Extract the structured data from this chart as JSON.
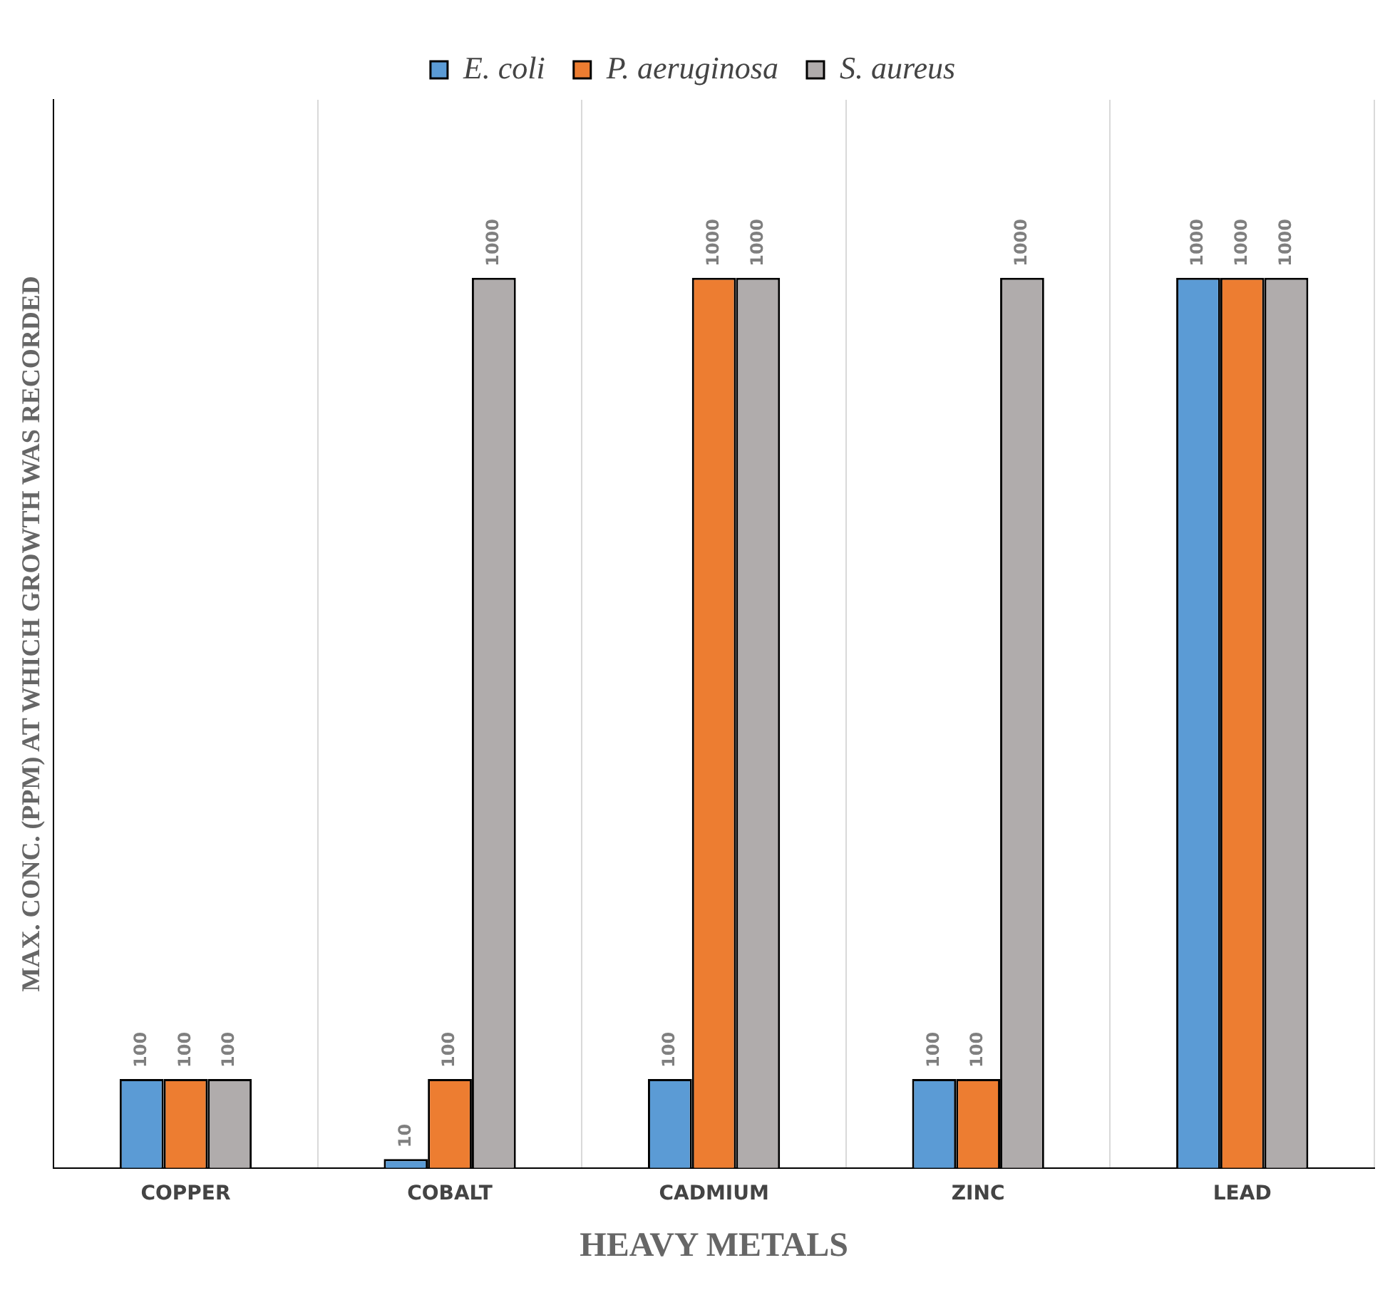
{
  "chart_data": {
    "type": "bar",
    "xlabel": "HEAVY METALS",
    "ylabel": "MAX. CONC. (PPM) AT WHICH GROWTH WAS RECORDED",
    "categories": [
      "COPPER",
      "COBALT",
      "CADMIUM",
      "ZINC",
      "LEAD"
    ],
    "series": [
      {
        "name": "E. coli",
        "color": "#5b9bd5",
        "values": [
          100,
          10,
          100,
          100,
          1000
        ]
      },
      {
        "name": "P. aeruginosa",
        "color": "#ed7d31",
        "values": [
          100,
          100,
          1000,
          100,
          1000
        ]
      },
      {
        "name": "S. aureus",
        "color": "#b0acac",
        "values": [
          100,
          1000,
          1000,
          1000,
          1000
        ]
      }
    ],
    "data_labels": true,
    "grid": "x",
    "legend": "top",
    "tick_labels": "x"
  }
}
